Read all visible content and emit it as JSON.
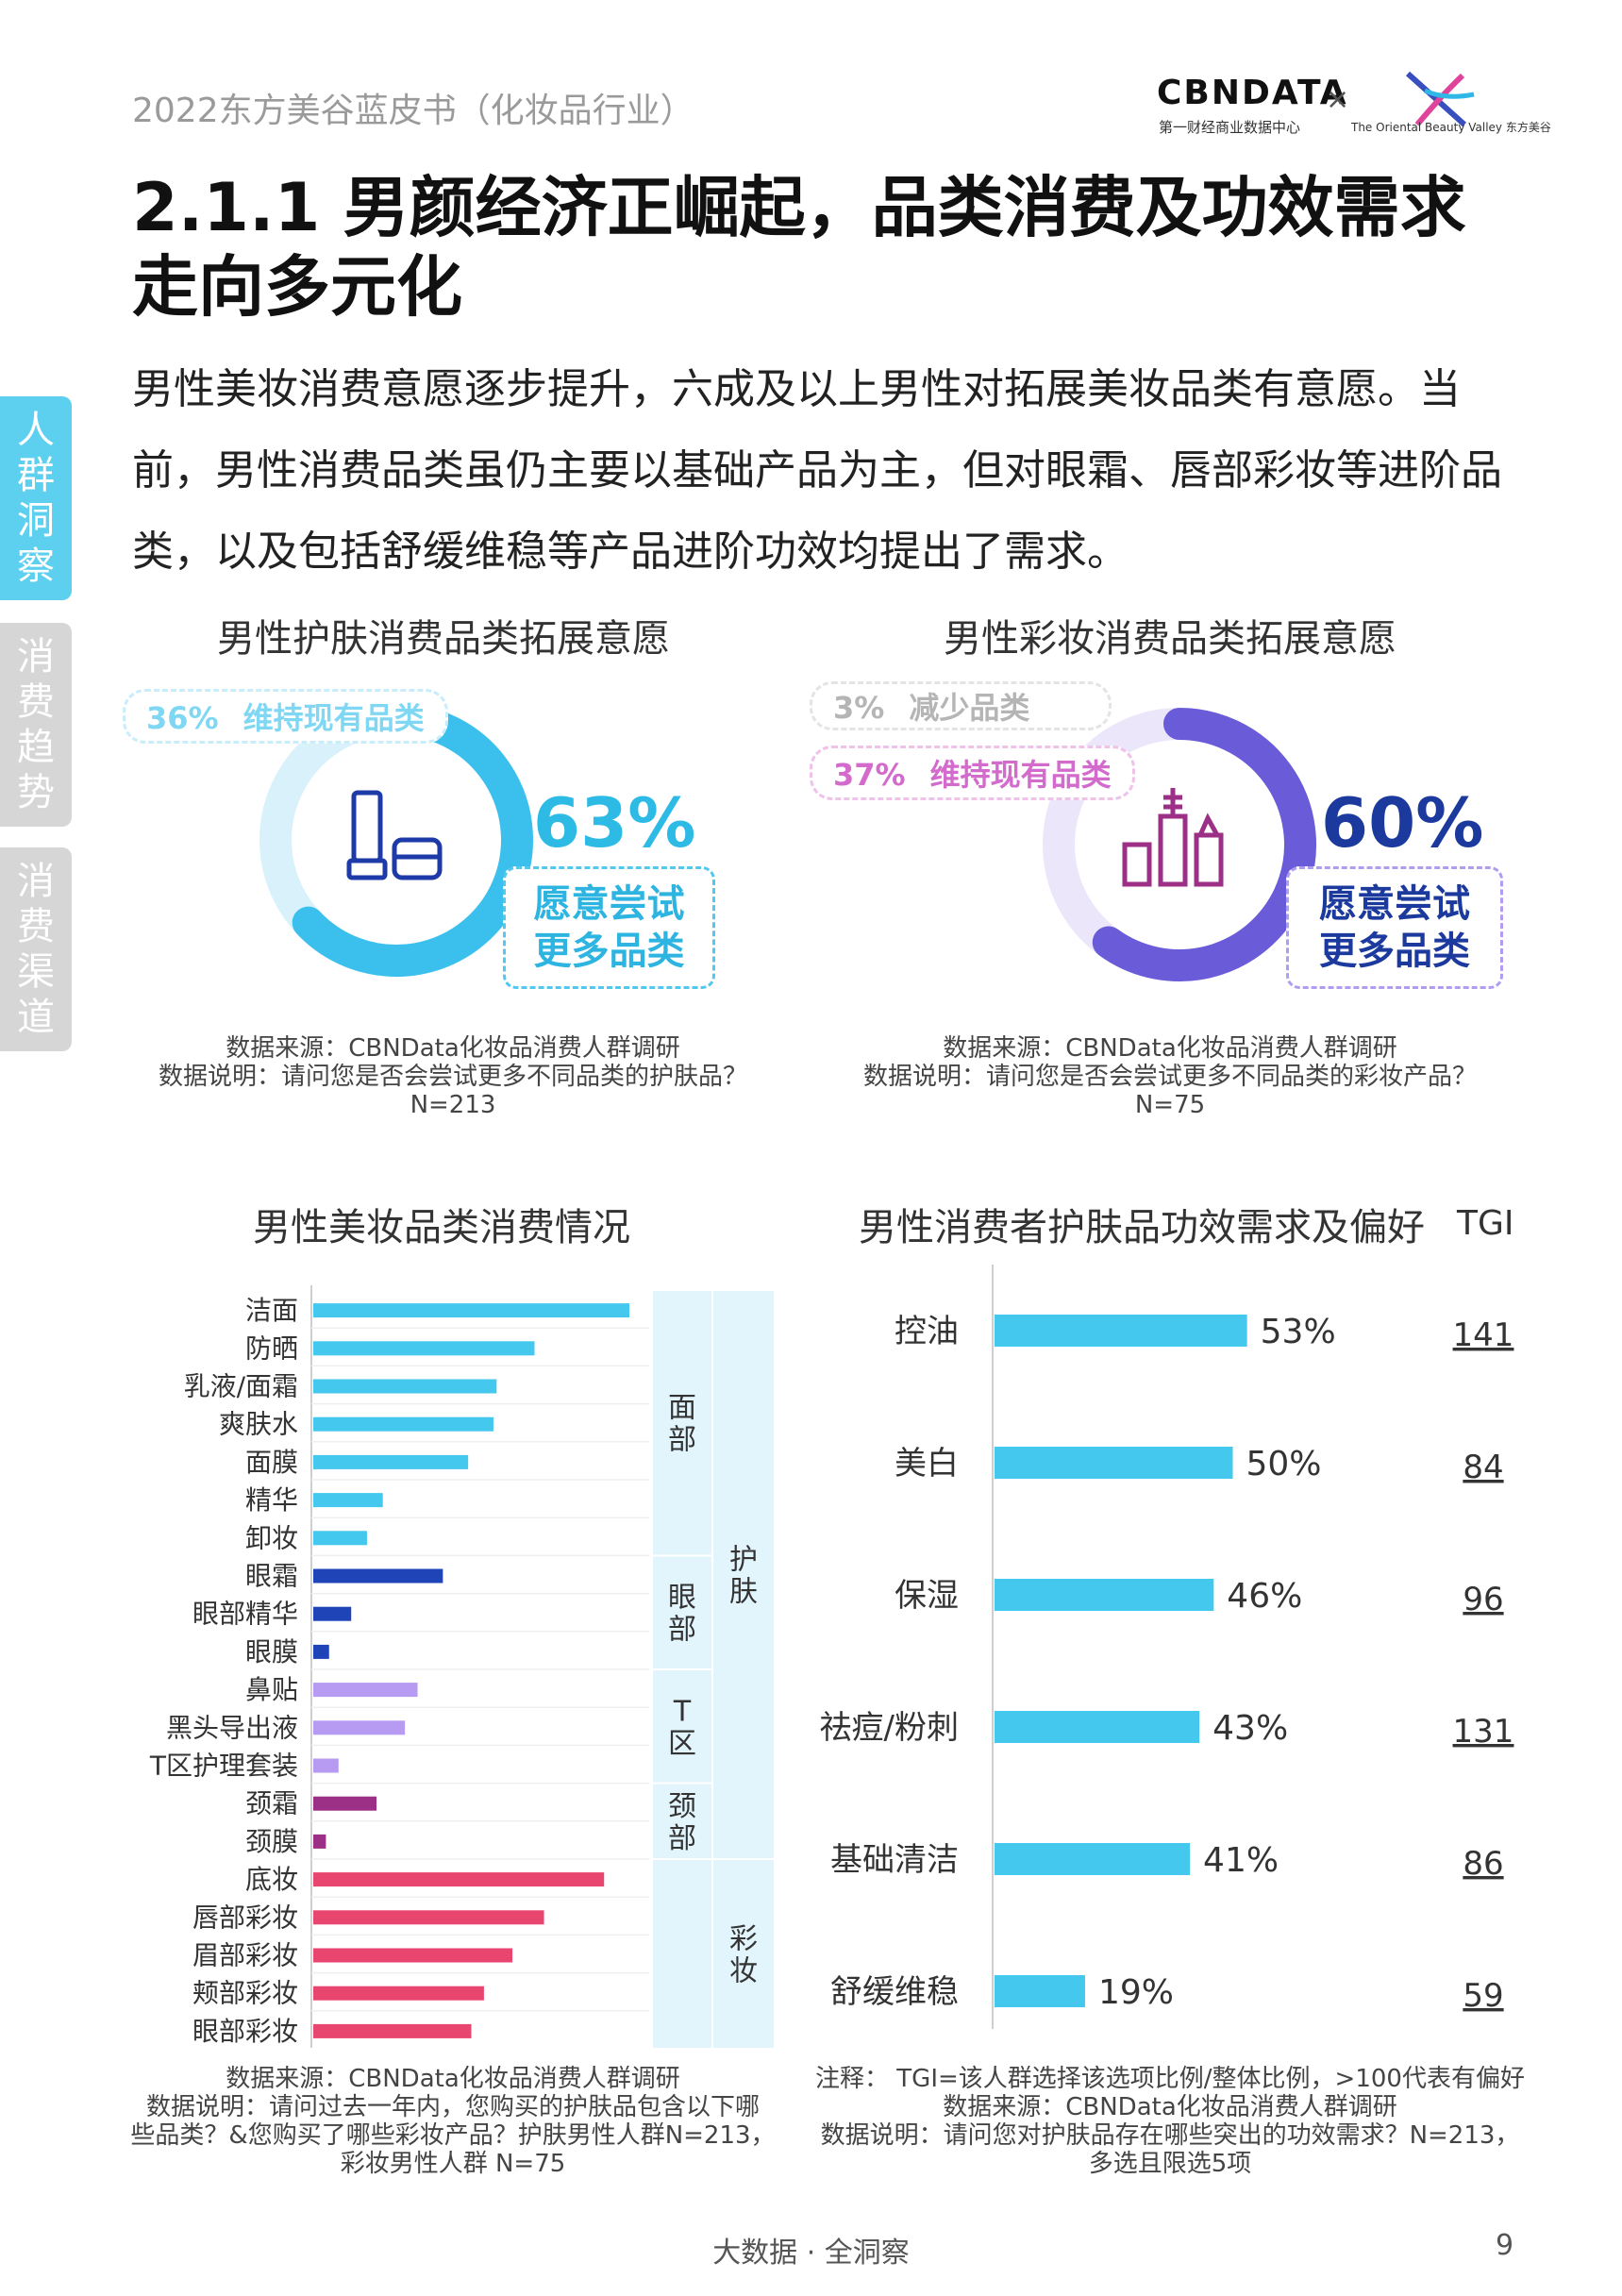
{
  "header": {
    "report_title": "2022东方美谷蓝皮书（化妆品行业）",
    "logo_cbn": "CBNDATA",
    "logo_cbn_sub": "第一财经商业数据中心",
    "logo_x": "×",
    "logo_ob_text": "The Oriental Beauty Valley 东方美谷"
  },
  "title": "2.1.1 男颜经济正崛起，品类消费及功效需求走向多元化",
  "intro": "男性美妆消费意愿逐步提升，六成及以上男性对拓展美妆品类有意愿。当前，男性消费品类虽仍主要以基础产品为主，但对眼霜、唇部彩妆等进阶品类，以及包括舒缓维稳等产品进阶功效均提出了需求。",
  "side_tabs": [
    "人群洞察",
    "消费趋势",
    "消费渠道"
  ],
  "colors": {
    "cyan": "#45c8ee",
    "blue_dark": "#1e44b8",
    "purple_light": "#b79bf2",
    "purple": "#9c2f86",
    "pink": "#e8456f",
    "teal_text": "#1ea3c9",
    "navy_text": "#1c3a9e",
    "lilac": "#e06bd3"
  },
  "footer": {
    "center": "大数据 · 全洞察",
    "page": "9"
  },
  "chart_data": [
    {
      "type": "pie",
      "title": "男性护肤消费品类拓展意愿",
      "slices": [
        {
          "name": "维持现有品类",
          "value": 36,
          "label": "36%"
        },
        {
          "name": "愿意尝试更多品类",
          "value": 63,
          "label": "63%",
          "callout": [
            "愿意尝试",
            "更多品类"
          ]
        }
      ],
      "source": [
        "数据来源：CBNData化妆品消费人群调研",
        "数据说明：请问您是否会尝试更多不同品类的护肤品？",
        "N=213"
      ]
    },
    {
      "type": "pie",
      "title": "男性彩妆消费品类拓展意愿",
      "slices": [
        {
          "name": "减少品类",
          "value": 3,
          "label": "3%"
        },
        {
          "name": "维持现有品类",
          "value": 37,
          "label": "37%"
        },
        {
          "name": "愿意尝试更多品类",
          "value": 60,
          "label": "60%",
          "callout": [
            "愿意尝试",
            "更多品类"
          ]
        }
      ],
      "source": [
        "数据来源：CBNData化妆品消费人群调研",
        "数据说明：请问您是否会尝试更多不同品类的彩妆产品？",
        "N=75"
      ]
    },
    {
      "type": "bar",
      "orientation": "horizontal",
      "title": "男性美妆品类消费情况",
      "categories": [
        "洁面",
        "防晒",
        "乳液/面霜",
        "爽肤水",
        "面膜",
        "精华",
        "卸妆",
        "眼霜",
        "眼部精华",
        "眼膜",
        "鼻贴",
        "黑头导出液",
        "T区护理套装",
        "颈霜",
        "颈膜",
        "底妆",
        "唇部彩妆",
        "眉部彩妆",
        "颊部彩妆",
        "眼部彩妆"
      ],
      "values": [
        100,
        70,
        58,
        57,
        49,
        22,
        17,
        41,
        12,
        5,
        33,
        29,
        8,
        20,
        4,
        92,
        73,
        63,
        54,
        50
      ],
      "bar_colors": [
        "cyan",
        "cyan",
        "cyan",
        "cyan",
        "cyan",
        "cyan",
        "cyan",
        "blue_dark",
        "blue_dark",
        "blue_dark",
        "purple_light",
        "purple_light",
        "purple_light",
        "purple",
        "purple",
        "pink",
        "pink",
        "pink",
        "pink",
        "pink"
      ],
      "xlim": [
        0,
        100
      ],
      "groups_inner": [
        {
          "label": "面部",
          "start": 0,
          "end": 6
        },
        {
          "label": "眼部",
          "start": 7,
          "end": 9
        },
        {
          "label": "T区",
          "start": 10,
          "end": 12
        },
        {
          "label": "颈部",
          "start": 13,
          "end": 14
        },
        {
          "label": "",
          "start": 15,
          "end": 19
        }
      ],
      "groups_outer": [
        {
          "label": "护肤",
          "start": 0,
          "end": 14
        },
        {
          "label": "彩妆",
          "start": 15,
          "end": 19
        }
      ],
      "source": [
        "数据来源：CBNData化妆品消费人群调研",
        "数据说明：请问过去一年内，您购买的护肤品包含以下哪",
        "些品类？&您购买了哪些彩妆产品？护肤男性人群N=213，",
        "彩妆男性人群 N=75"
      ]
    },
    {
      "type": "bar",
      "orientation": "horizontal",
      "title": "男性消费者护肤品功效需求及偏好",
      "tgi_label": "TGI",
      "categories": [
        "控油",
        "美白",
        "保湿",
        "祛痘/粉刺",
        "基础清洁",
        "舒缓维稳"
      ],
      "values": [
        53,
        50,
        46,
        43,
        41,
        19
      ],
      "value_labels": [
        "53%",
        "50%",
        "46%",
        "43%",
        "41%",
        "19%"
      ],
      "tgi": [
        "141",
        "84",
        "96",
        "131",
        "86",
        "59"
      ],
      "xlim": [
        0,
        100
      ],
      "source": [
        "注释： TGI=该人群选择该选项比例/整体比例，>100代表有偏好",
        "数据来源：CBNData化妆品消费人群调研",
        "数据说明：请问您对护肤品存在哪些突出的功效需求？N=213，",
        "多选且限选5项"
      ]
    }
  ]
}
